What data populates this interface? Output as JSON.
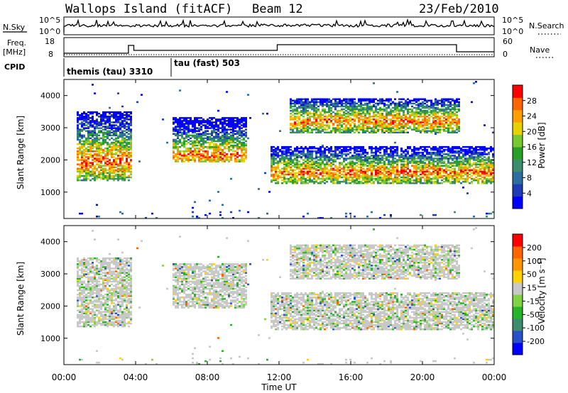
{
  "header": {
    "station": "Wallops Island (fitACF)",
    "beam": "Beam 12",
    "date": "23/Feb/2010"
  },
  "left_labels": {
    "nsky": "N.Sky",
    "freq_line1": "Freq.",
    "freq_line2": "[MHz]",
    "cpid": "CPID"
  },
  "right_labels": {
    "nsearch": "N.Search",
    "nave": "Nave"
  },
  "noise_panel": {
    "left_ticks": [
      "10^5",
      "10^0"
    ],
    "right_ticks": [
      "10^5",
      "10^0"
    ]
  },
  "freq_panel": {
    "left_ticks": [
      "18",
      "8"
    ],
    "right_ticks": [
      "60",
      "0"
    ]
  },
  "cpid": [
    {
      "label": "themis (tau) 3310",
      "start_hour": 0.0,
      "end_hour": 6.0
    },
    {
      "label": "tau (fast) 503",
      "start_hour": 6.0,
      "end_hour": 24.0
    }
  ],
  "colors": {
    "power": [
      "#0000ff",
      "#1e3cb4",
      "#2d6ea0",
      "#3c8c6e",
      "#28a028",
      "#78c832",
      "#e6d200",
      "#ffa000",
      "#ff6400",
      "#ff0000"
    ],
    "velocity": [
      "#0000ff",
      "#2850c8",
      "#3c8c6e",
      "#28b428",
      "#82d246",
      "#c8c8c8",
      "#ffd200",
      "#ff9600",
      "#ff6400",
      "#ff0000"
    ]
  },
  "chart_data": [
    {
      "type": "heatmap",
      "name": "power",
      "xlabel": "",
      "ylabel": "Slant Range [km]",
      "x_unit": "hour UT",
      "xlim": [
        0,
        24
      ],
      "ylim": [
        180,
        4500
      ],
      "y_ticks": [
        1000,
        2000,
        3000,
        4000
      ],
      "colorbar": {
        "label": "Power [dB]",
        "ticks": [
          "4",
          "8",
          "12",
          "16",
          "20",
          "24",
          "28"
        ],
        "range": [
          0,
          30
        ]
      },
      "echo_regions": [
        {
          "t0": 0.6,
          "t1": 3.7,
          "r0": 1350,
          "r1": 3500,
          "core": 1950
        },
        {
          "t0": 6.0,
          "t1": 10.2,
          "r0": 1900,
          "r1": 3300,
          "core": 2150
        },
        {
          "t0": 11.5,
          "t1": 24.0,
          "r0": 1250,
          "r1": 2400,
          "core": 1600
        },
        {
          "t0": 12.5,
          "t1": 22.0,
          "r0": 2800,
          "r1": 3900,
          "core": 3200
        }
      ]
    },
    {
      "type": "heatmap",
      "name": "velocity",
      "xlabel": "Time UT",
      "ylabel": "Slant Range [km]",
      "x_unit": "hour UT",
      "xlim": [
        0,
        24
      ],
      "ylim": [
        180,
        4500
      ],
      "x_ticks": [
        "00:00",
        "04:00",
        "08:00",
        "12:00",
        "16:00",
        "20:00",
        "00:00"
      ],
      "y_ticks": [
        1000,
        2000,
        3000,
        4000
      ],
      "colorbar": {
        "label": "Velocity [m s⁻¹]",
        "ticks": [
          "200",
          "100",
          "50",
          "15",
          "-15",
          "-50",
          "-100",
          "-200"
        ]
      }
    }
  ]
}
